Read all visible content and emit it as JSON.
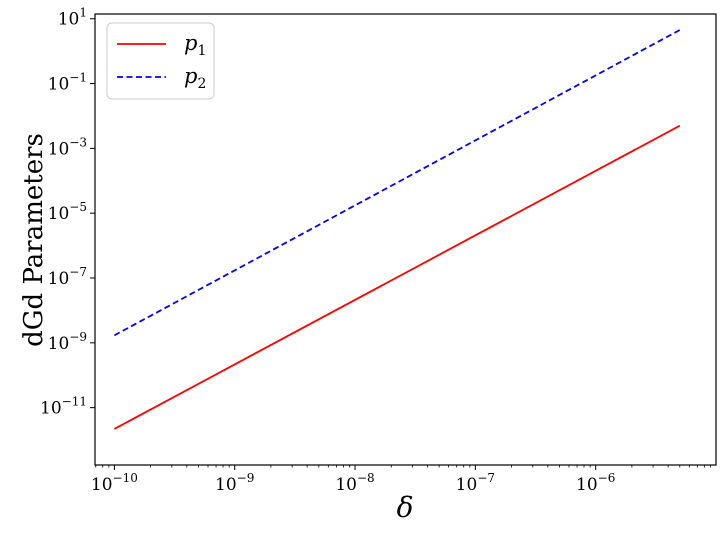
{
  "chart_data": {
    "type": "line",
    "title": "",
    "xlabel": "δ",
    "ylabel": "dGd Parameters",
    "xscale": "log",
    "yscale": "log",
    "xlim": [
      6.9e-11,
      1e-05
    ],
    "ylim": [
      1.7e-13,
      14
    ],
    "x_ticks": [
      {
        "base": "10",
        "exp": "−10",
        "value": 1e-10
      },
      {
        "base": "10",
        "exp": "−9",
        "value": 1e-09
      },
      {
        "base": "10",
        "exp": "−8",
        "value": 1e-08
      },
      {
        "base": "10",
        "exp": "−7",
        "value": 1e-07
      },
      {
        "base": "10",
        "exp": "−6",
        "value": 1e-06
      }
    ],
    "y_ticks": [
      {
        "base": "10",
        "exp": "1",
        "value": 10
      },
      {
        "base": "10",
        "exp": "−1",
        "value": 0.1
      },
      {
        "base": "10",
        "exp": "−3",
        "value": 0.001
      },
      {
        "base": "10",
        "exp": "−5",
        "value": 1e-05
      },
      {
        "base": "10",
        "exp": "−7",
        "value": 1e-07
      },
      {
        "base": "10",
        "exp": "−9",
        "value": 1e-09
      },
      {
        "base": "10",
        "exp": "−11",
        "value": 1e-11
      }
    ],
    "grid": false,
    "legend_position": "top-left",
    "series": [
      {
        "name": "p",
        "subscript": "1",
        "color": "#ff0000",
        "dash": "solid",
        "x": [
          1e-10,
          5e-06
        ],
        "y": [
          2.2e-12,
          0.005
        ]
      },
      {
        "name": "p",
        "subscript": "2",
        "color": "#0000ff",
        "dash": "dashed",
        "x": [
          1e-10,
          5e-06
        ],
        "y": [
          1.7e-09,
          4.5
        ]
      }
    ]
  }
}
